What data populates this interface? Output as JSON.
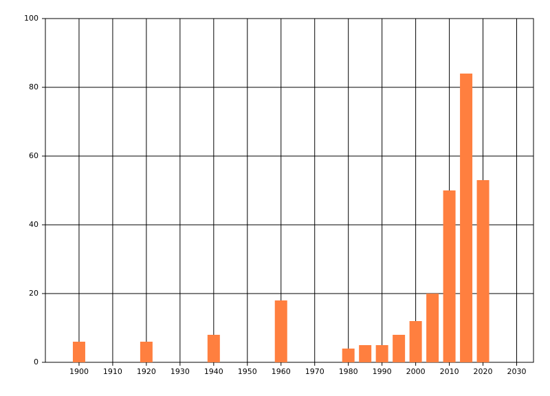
{
  "chart_data": {
    "type": "bar",
    "x": [
      1900,
      1920,
      1940,
      1960,
      1980,
      1985,
      1990,
      1995,
      2000,
      2005,
      2010,
      2015,
      2020
    ],
    "values": [
      6,
      6,
      8,
      18,
      4,
      5,
      5,
      8,
      12,
      20,
      50,
      84,
      53
    ],
    "color": "#ff7f3f",
    "xlim": [
      1890,
      2035
    ],
    "xticks": [
      1900,
      1910,
      1920,
      1930,
      1940,
      1950,
      1960,
      1970,
      1980,
      1990,
      2000,
      2010,
      2020,
      2030
    ],
    "ylim": [
      0,
      100
    ],
    "yticks": [
      0,
      20,
      40,
      60,
      80,
      100
    ],
    "grid": true
  }
}
